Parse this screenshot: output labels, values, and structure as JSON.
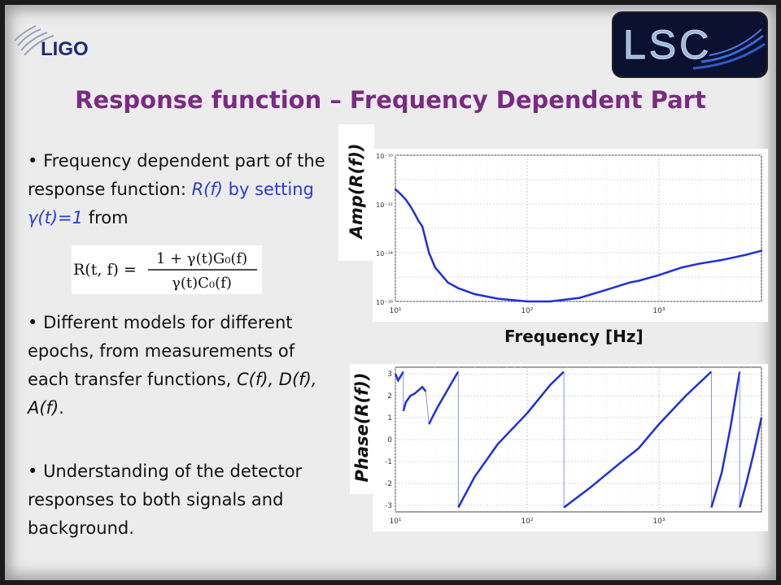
{
  "header": {
    "ligo_label": "LIGO",
    "lsc_label": "LSC"
  },
  "title": "Response function – Frequency Dependent Part",
  "bullets": {
    "b1": {
      "text_a": "Frequency dependent part of the response function: ",
      "rf": "R(f)",
      "by_setting": " by setting ",
      "gamma": "γ(t)=1",
      "from": " from"
    },
    "b2": {
      "text_a": "Different models for different epochs, from measurements of each transfer functions, ",
      "funcs": "C(f), D(f), A(f)",
      "end": "."
    },
    "b3": {
      "text": "Understanding of the detector responses to both signals and background."
    }
  },
  "formula": {
    "lhs": "R(t, f) =",
    "numerator": "1 + γ(t)G₀(f)",
    "denominator": "γ(t)C₀(f)"
  },
  "chart_data": [
    {
      "type": "line",
      "ylabel": "Amp(R(f))",
      "xlabel": "Frequency [Hz]",
      "x_scale": "log",
      "y_scale": "log",
      "xlim": [
        10,
        6000
      ],
      "ylim": [
        1e-16,
        1e-10
      ],
      "x_ticks": [
        "10¹",
        "10²",
        "10³"
      ],
      "y_ticks": [
        "10⁻¹⁰",
        "10⁻¹²",
        "10⁻¹⁴",
        "10⁻¹⁶"
      ],
      "grid": true,
      "series": [
        {
          "x": [
            10,
            11,
            12,
            13,
            14,
            15,
            16,
            18,
            20,
            25,
            30,
            40,
            60,
            100,
            150,
            250,
            400,
            600,
            700,
            1000,
            1500,
            2000,
            3000,
            4500,
            6000
          ],
          "y": [
            4e-12,
            2.5e-12,
            1.5e-12,
            8e-13,
            4e-13,
            2e-13,
            1.2e-13,
            1e-14,
            2.5e-15,
            6e-16,
            3.5e-16,
            2e-16,
            1.3e-16,
            1e-16,
            1e-16,
            1.4e-16,
            3e-16,
            6e-16,
            7e-16,
            1.2e-15,
            2.5e-15,
            3.5e-15,
            5e-15,
            8e-15,
            1.2e-14
          ]
        }
      ],
      "color": "#1f2fd8"
    },
    {
      "type": "line",
      "ylabel": "Phase(R(f))",
      "x_scale": "log",
      "xlim": [
        10,
        6000
      ],
      "ylim": [
        -3.3,
        3.3
      ],
      "x_ticks": [
        "10¹",
        "10²",
        "10³"
      ],
      "y_ticks": [
        "3",
        "2",
        "1",
        "0",
        "-1",
        "-2",
        "-3"
      ],
      "grid": true,
      "segments": [
        {
          "x": [
            10,
            10.5,
            11,
            11.5
          ],
          "y": [
            3.0,
            2.7,
            2.9,
            3.1
          ]
        },
        {
          "x": [
            11.5,
            12,
            13,
            14,
            16,
            17
          ],
          "y": [
            1.3,
            1.7,
            2.0,
            2.1,
            2.4,
            2.2
          ]
        },
        {
          "x": [
            18,
            19,
            21,
            24,
            28,
            30
          ],
          "y": [
            0.7,
            1.0,
            1.5,
            2.1,
            2.8,
            3.1
          ]
        },
        {
          "x": [
            30,
            40,
            60,
            100,
            150,
            190
          ],
          "y": [
            -3.1,
            -1.7,
            -0.2,
            1.2,
            2.5,
            3.1
          ]
        },
        {
          "x": [
            190,
            300,
            500,
            700,
            1000,
            1600,
            2500
          ],
          "y": [
            -3.1,
            -2.2,
            -1.1,
            -0.4,
            0.7,
            2.0,
            3.1
          ]
        },
        {
          "x": [
            2500,
            3000,
            3500,
            4100
          ],
          "y": [
            -3.1,
            -1.5,
            0.6,
            3.1
          ]
        },
        {
          "x": [
            4100,
            4600,
            5200,
            6000
          ],
          "y": [
            -3.1,
            -2.0,
            -0.7,
            1.0
          ]
        }
      ],
      "color": "#1f2fd8"
    }
  ]
}
